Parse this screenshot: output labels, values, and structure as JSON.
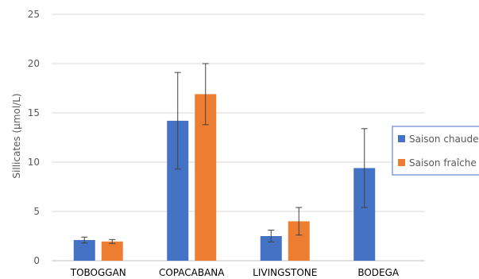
{
  "chart_data": {
    "type": "bar",
    "ylabel": "Sillicates (µmol/L)",
    "xlabel": "",
    "ylim": [
      0,
      25
    ],
    "yticks": [
      0,
      5,
      10,
      15,
      20,
      25
    ],
    "grid": true,
    "legend_position": "right",
    "categories": [
      "TOBOGGAN",
      "COPACABANA",
      "LIVINGSTONE",
      "BODEGA"
    ],
    "series": [
      {
        "name": "Saison chaude",
        "color": "#4472C4",
        "values": [
          2.1,
          14.2,
          2.5,
          9.4
        ],
        "error": [
          0.3,
          4.9,
          0.6,
          4.0
        ]
      },
      {
        "name": "Saison fraîche",
        "color": "#ED7D31",
        "values": [
          1.95,
          16.9,
          4.0,
          null
        ],
        "error": [
          0.2,
          3.1,
          1.4,
          null
        ]
      }
    ]
  }
}
